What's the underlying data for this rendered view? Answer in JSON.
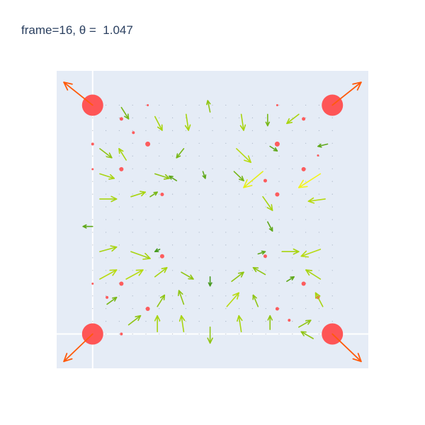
{
  "chart_data": {
    "type": "scatter",
    "title": "frame=16, θ =  1.047",
    "xlim": [
      -0.15,
      1.15
    ],
    "ylim": [
      -0.15,
      1.15
    ],
    "grid": false,
    "zero_lines": true,
    "colors": {
      "plot_bg": "#e5ecf6",
      "zero_line": "#ffffff",
      "marker": "#ff4d4d",
      "corner_arrow": "#ff5a0a",
      "arrow_low": "#2e8b22",
      "arrow_mid": "#a8d40f",
      "arrow_high": "#f4f416",
      "title_text": "#2a3f5f"
    },
    "corner_points": [
      {
        "x": 0,
        "y": 1
      },
      {
        "x": 1,
        "y": 1
      },
      {
        "x": 0,
        "y": 0
      },
      {
        "x": 1,
        "y": 0
      }
    ],
    "corner_arrows": [
      {
        "x": 0,
        "y": 1,
        "u": -0.12,
        "v": 0.1
      },
      {
        "x": 1,
        "y": 1,
        "u": 0.12,
        "v": 0.1
      },
      {
        "x": 0,
        "y": 0,
        "u": -0.12,
        "v": -0.12
      },
      {
        "x": 1,
        "y": 0,
        "u": 0.12,
        "v": -0.12
      }
    ],
    "small_points": [
      {
        "x": 0.12,
        "y": 0.94,
        "s": 2.5
      },
      {
        "x": 0.17,
        "y": 0.88,
        "s": 2
      },
      {
        "x": 0.23,
        "y": 0.83,
        "s": 3.5
      },
      {
        "x": 0.0,
        "y": 0.83,
        "s": 2
      },
      {
        "x": 0.12,
        "y": 0.72,
        "s": 3
      },
      {
        "x": 0.0,
        "y": 0.72,
        "s": 1.5
      },
      {
        "x": 0.29,
        "y": 0.61,
        "s": 2.5
      },
      {
        "x": 0.72,
        "y": 0.67,
        "s": 2.5
      },
      {
        "x": 0.77,
        "y": 0.61,
        "s": 3
      },
      {
        "x": 0.77,
        "y": 0.83,
        "s": 3.5
      },
      {
        "x": 0.88,
        "y": 0.94,
        "s": 2.5
      },
      {
        "x": 0.88,
        "y": 0.72,
        "s": 3
      },
      {
        "x": 0.94,
        "y": 0.78,
        "s": 1.5
      },
      {
        "x": 0.29,
        "y": 0.34,
        "s": 3
      },
      {
        "x": 0.12,
        "y": 0.22,
        "s": 3
      },
      {
        "x": 0.06,
        "y": 0.16,
        "s": 2
      },
      {
        "x": 0.23,
        "y": 0.11,
        "s": 3
      },
      {
        "x": 0.0,
        "y": 0.22,
        "s": 1.5
      },
      {
        "x": 0.12,
        "y": 0.0,
        "s": 2
      },
      {
        "x": 0.88,
        "y": 0.22,
        "s": 3
      },
      {
        "x": 0.94,
        "y": 0.16,
        "s": 2.5
      },
      {
        "x": 0.77,
        "y": 0.11,
        "s": 2.5
      },
      {
        "x": 0.82,
        "y": 0.06,
        "s": 2
      },
      {
        "x": 0.72,
        "y": 0.34,
        "s": 2.5
      },
      {
        "x": 0.23,
        "y": 1.0,
        "s": 1.5
      },
      {
        "x": 0.77,
        "y": 1.0,
        "s": 1.5
      }
    ],
    "arrows": [
      {
        "x": 0.12,
        "y": 0.99,
        "u": 0.03,
        "v": -0.05,
        "m": 0.3
      },
      {
        "x": 0.26,
        "y": 0.95,
        "u": 0.03,
        "v": -0.06,
        "m": 0.5
      },
      {
        "x": 0.39,
        "y": 0.96,
        "u": 0.01,
        "v": -0.07,
        "m": 0.5
      },
      {
        "x": 0.49,
        "y": 0.97,
        "u": -0.01,
        "v": 0.05,
        "m": 0.4
      },
      {
        "x": 0.62,
        "y": 0.96,
        "u": 0.01,
        "v": -0.07,
        "m": 0.5
      },
      {
        "x": 0.73,
        "y": 0.96,
        "u": 0.0,
        "v": -0.05,
        "m": 0.3
      },
      {
        "x": 0.86,
        "y": 0.96,
        "u": -0.05,
        "v": -0.04,
        "m": 0.5
      },
      {
        "x": 0.03,
        "y": 0.81,
        "u": 0.05,
        "v": -0.04,
        "m": 0.4
      },
      {
        "x": 0.14,
        "y": 0.76,
        "u": -0.03,
        "v": 0.05,
        "m": 0.5
      },
      {
        "x": 0.38,
        "y": 0.81,
        "u": -0.03,
        "v": -0.04,
        "m": 0.3
      },
      {
        "x": 0.6,
        "y": 0.81,
        "u": 0.06,
        "v": -0.06,
        "m": 0.6
      },
      {
        "x": 0.74,
        "y": 0.82,
        "u": 0.03,
        "v": -0.02,
        "m": 0.2
      },
      {
        "x": 0.98,
        "y": 0.83,
        "u": -0.04,
        "v": -0.01,
        "m": 0.2
      },
      {
        "x": 0.03,
        "y": 0.7,
        "u": 0.06,
        "v": -0.02,
        "m": 0.5
      },
      {
        "x": 0.26,
        "y": 0.7,
        "u": 0.06,
        "v": -0.02,
        "m": 0.4
      },
      {
        "x": 0.35,
        "y": 0.67,
        "u": -0.03,
        "v": 0.02,
        "m": 0.2
      },
      {
        "x": 0.46,
        "y": 0.71,
        "u": 0.01,
        "v": -0.03,
        "m": 0.2
      },
      {
        "x": 0.59,
        "y": 0.71,
        "u": 0.04,
        "v": -0.04,
        "m": 0.3
      },
      {
        "x": 0.71,
        "y": 0.71,
        "u": -0.08,
        "v": -0.07,
        "m": 0.9
      },
      {
        "x": 0.95,
        "y": 0.7,
        "u": -0.09,
        "v": -0.06,
        "m": 1.0
      },
      {
        "x": 0.03,
        "y": 0.59,
        "u": 0.07,
        "v": 0.0,
        "m": 0.5
      },
      {
        "x": 0.16,
        "y": 0.6,
        "u": 0.06,
        "v": 0.02,
        "m": 0.5
      },
      {
        "x": 0.24,
        "y": 0.6,
        "u": 0.03,
        "v": 0.02,
        "m": 0.3
      },
      {
        "x": 0.71,
        "y": 0.6,
        "u": 0.04,
        "v": -0.06,
        "m": 0.5
      },
      {
        "x": 0.97,
        "y": 0.59,
        "u": -0.07,
        "v": -0.01,
        "m": 0.6
      },
      {
        "x": 0.0,
        "y": 0.47,
        "u": -0.04,
        "v": 0.0,
        "m": 0.2
      },
      {
        "x": 0.73,
        "y": 0.49,
        "u": 0.02,
        "v": -0.04,
        "m": 0.2
      },
      {
        "x": 0.03,
        "y": 0.36,
        "u": 0.07,
        "v": 0.02,
        "m": 0.5
      },
      {
        "x": 0.16,
        "y": 0.36,
        "u": 0.08,
        "v": -0.03,
        "m": 0.5
      },
      {
        "x": 0.28,
        "y": 0.37,
        "u": -0.02,
        "v": -0.01,
        "m": 0.1
      },
      {
        "x": 0.69,
        "y": 0.35,
        "u": 0.03,
        "v": 0.01,
        "m": 0.2
      },
      {
        "x": 0.79,
        "y": 0.36,
        "u": 0.07,
        "v": 0.0,
        "m": 0.5
      },
      {
        "x": 0.95,
        "y": 0.37,
        "u": -0.08,
        "v": -0.03,
        "m": 0.6
      },
      {
        "x": 0.03,
        "y": 0.24,
        "u": 0.07,
        "v": 0.04,
        "m": 0.6
      },
      {
        "x": 0.14,
        "y": 0.24,
        "u": 0.07,
        "v": 0.04,
        "m": 0.6
      },
      {
        "x": 0.26,
        "y": 0.25,
        "u": 0.05,
        "v": 0.04,
        "m": 0.5
      },
      {
        "x": 0.37,
        "y": 0.27,
        "u": 0.05,
        "v": -0.03,
        "m": 0.4
      },
      {
        "x": 0.49,
        "y": 0.25,
        "u": 0.0,
        "v": -0.04,
        "m": 0.1
      },
      {
        "x": 0.58,
        "y": 0.23,
        "u": 0.05,
        "v": 0.04,
        "m": 0.4
      },
      {
        "x": 0.72,
        "y": 0.26,
        "u": -0.05,
        "v": 0.03,
        "m": 0.4
      },
      {
        "x": 0.81,
        "y": 0.23,
        "u": 0.03,
        "v": 0.02,
        "m": 0.2
      },
      {
        "x": 0.95,
        "y": 0.24,
        "u": -0.06,
        "v": 0.04,
        "m": 0.5
      },
      {
        "x": 0.06,
        "y": 0.13,
        "u": 0.04,
        "v": 0.03,
        "m": 0.3
      },
      {
        "x": 0.27,
        "y": 0.12,
        "u": 0.03,
        "v": 0.05,
        "m": 0.4
      },
      {
        "x": 0.38,
        "y": 0.13,
        "u": -0.02,
        "v": 0.06,
        "m": 0.4
      },
      {
        "x": 0.56,
        "y": 0.12,
        "u": 0.05,
        "v": 0.06,
        "m": 0.6
      },
      {
        "x": 0.69,
        "y": 0.12,
        "u": -0.02,
        "v": 0.05,
        "m": 0.4
      },
      {
        "x": 0.96,
        "y": 0.12,
        "u": -0.03,
        "v": 0.06,
        "m": 0.5
      },
      {
        "x": 0.15,
        "y": 0.04,
        "u": 0.05,
        "v": 0.04,
        "m": 0.4
      },
      {
        "x": 0.27,
        "y": 0.01,
        "u": 0.0,
        "v": 0.07,
        "m": 0.5
      },
      {
        "x": 0.38,
        "y": 0.01,
        "u": -0.01,
        "v": 0.07,
        "m": 0.5
      },
      {
        "x": 0.62,
        "y": 0.01,
        "u": -0.01,
        "v": 0.07,
        "m": 0.5
      },
      {
        "x": 0.74,
        "y": 0.02,
        "u": 0.0,
        "v": 0.06,
        "m": 0.4
      },
      {
        "x": 0.86,
        "y": 0.03,
        "u": 0.05,
        "v": 0.03,
        "m": 0.4
      },
      {
        "x": 0.49,
        "y": 0.03,
        "u": 0.0,
        "v": -0.07,
        "m": 0.4
      },
      {
        "x": 0.92,
        "y": -0.02,
        "u": -0.05,
        "v": 0.03,
        "m": 0.4
      }
    ]
  }
}
